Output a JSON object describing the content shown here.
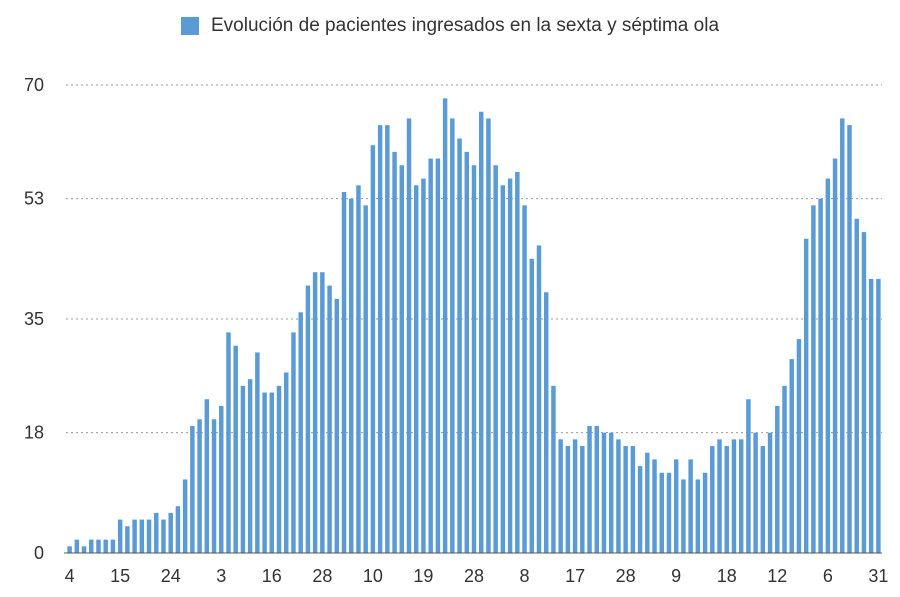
{
  "chart_data": {
    "type": "bar",
    "legend": {
      "label": "Evolución de pacientes ingresados en la sexta y séptima ola",
      "position": "top"
    },
    "color": "#5b9bd5",
    "ylim": [
      0,
      70
    ],
    "yticks": [
      0,
      18,
      35,
      53,
      70
    ],
    "grid": true,
    "xtick_labels": [
      "4",
      "15",
      "24",
      "3",
      "16",
      "28",
      "10",
      "19",
      "28",
      "8",
      "17",
      "28",
      "9",
      "18",
      "12",
      "6",
      "31"
    ],
    "xtick_every": 7,
    "values": [
      1,
      2,
      1,
      2,
      2,
      2,
      2,
      5,
      4,
      5,
      5,
      5,
      6,
      5,
      6,
      7,
      11,
      19,
      20,
      23,
      20,
      22,
      33,
      31,
      25,
      26,
      30,
      24,
      24,
      25,
      27,
      33,
      36,
      40,
      42,
      42,
      40,
      38,
      54,
      53,
      55,
      52,
      61,
      64,
      64,
      60,
      58,
      65,
      55,
      56,
      59,
      59,
      68,
      65,
      62,
      60,
      58,
      66,
      65,
      58,
      55,
      56,
      57,
      52,
      44,
      46,
      39,
      25,
      17,
      16,
      17,
      16,
      19,
      19,
      18,
      18,
      17,
      16,
      16,
      13,
      15,
      14,
      12,
      12,
      14,
      11,
      14,
      11,
      12,
      16,
      17,
      16,
      17,
      17,
      23,
      18,
      16,
      18,
      22,
      25,
      29,
      32,
      47,
      52,
      53,
      56,
      59,
      65,
      64,
      50,
      48,
      41,
      41
    ]
  }
}
